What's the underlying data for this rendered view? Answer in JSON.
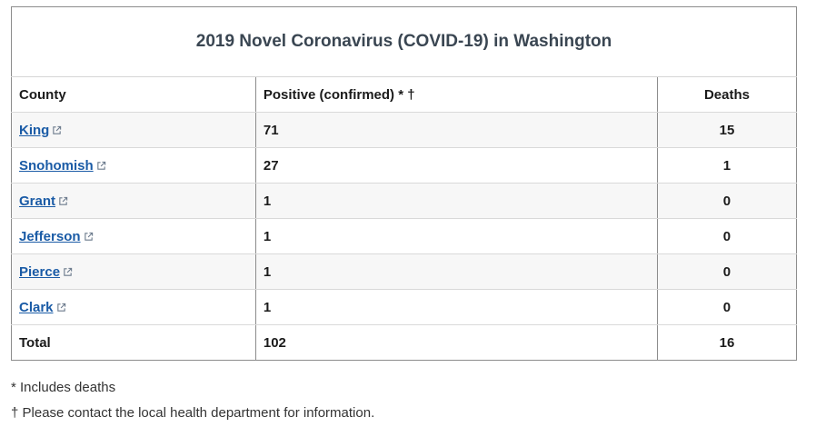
{
  "table": {
    "title": "2019 Novel Coronavirus (COVID-19) in Washington",
    "headers": {
      "county": "County",
      "positive": "Positive (confirmed) * †",
      "deaths": "Deaths"
    },
    "rows": [
      {
        "county": "King",
        "positive": "71",
        "deaths": "15",
        "icon": "external-link-icon"
      },
      {
        "county": "Snohomish",
        "positive": "27",
        "deaths": "1",
        "icon": "external-link-icon"
      },
      {
        "county": "Grant",
        "positive": "1",
        "deaths": "0",
        "icon": "external-link-icon"
      },
      {
        "county": "Jefferson",
        "positive": "1",
        "deaths": "0",
        "icon": "external-link-icon"
      },
      {
        "county": "Pierce",
        "positive": "1",
        "deaths": "0",
        "icon": "external-link-icon"
      },
      {
        "county": "Clark",
        "positive": "1",
        "deaths": "0",
        "icon": "external-link-icon"
      }
    ],
    "total": {
      "label": "Total",
      "positive": "102",
      "deaths": "16"
    }
  },
  "footnotes": {
    "asterisk": "* Includes deaths",
    "dagger": "† Please contact the local health department for information."
  },
  "colors": {
    "link": "#1a5ba6",
    "title": "#3a4652",
    "row_alt": "#f7f7f7"
  }
}
